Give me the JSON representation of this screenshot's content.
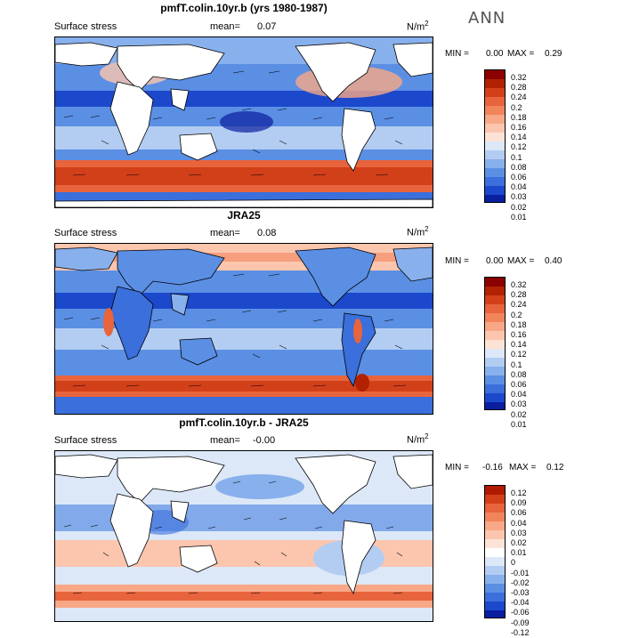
{
  "season": "ANN",
  "panels": [
    {
      "title": "pmfT.colin.10yr.b (yrs 1980-1987)",
      "field": "Surface stress",
      "mean_label": "mean=",
      "mean": "0.07",
      "unit_base": "N/m",
      "unit_exp": "2",
      "min_label": "MIN =",
      "min": "0.00",
      "max_label": "MAX =",
      "max": "0.29",
      "levels": [
        "0.32",
        "0.28",
        "0.24",
        "0.2",
        "0.18",
        "0.16",
        "0.14",
        "0.12",
        "0.1",
        "0.08",
        "0.06",
        "0.04",
        "0.03",
        "0.02",
        "0.01"
      ],
      "colors": [
        "#8b0000",
        "#b22200",
        "#d2401a",
        "#e8643c",
        "#f2845c",
        "#f8a886",
        "#fcc6ae",
        "#fde3d6",
        "#dce8f8",
        "#b3cdf2",
        "#88b0ec",
        "#5b8fe4",
        "#3a6fdc",
        "#1c48cc",
        "#0a1ea0"
      ]
    },
    {
      "title": "JRA25",
      "field": "Surface stress",
      "mean_label": "mean=",
      "mean": "0.08",
      "unit_base": "N/m",
      "unit_exp": "2",
      "min_label": "MIN =",
      "min": "0.00",
      "max_label": "MAX =",
      "max": "0.40",
      "levels": [
        "0.32",
        "0.28",
        "0.24",
        "0.2",
        "0.18",
        "0.16",
        "0.14",
        "0.12",
        "0.1",
        "0.08",
        "0.06",
        "0.04",
        "0.03",
        "0.02",
        "0.01"
      ],
      "colors": [
        "#8b0000",
        "#b22200",
        "#d2401a",
        "#e8643c",
        "#f2845c",
        "#f8a886",
        "#fcc6ae",
        "#fde3d6",
        "#dce8f8",
        "#b3cdf2",
        "#88b0ec",
        "#5b8fe4",
        "#3a6fdc",
        "#1c48cc",
        "#0a1ea0"
      ]
    },
    {
      "title": "pmfT.colin.10yr.b - JRA25",
      "field": "Surface stress",
      "mean_label": "mean=",
      "mean": "-0.00",
      "unit_base": "N/m",
      "unit_exp": "2",
      "min_label": "MIN =",
      "min": "-0.16",
      "max_label": "MAX =",
      "max": "0.12",
      "levels": [
        "0.12",
        "0.09",
        "0.06",
        "0.04",
        "0.03",
        "0.02",
        "0.01",
        "0",
        "-0.01",
        "-0.02",
        "-0.03",
        "-0.04",
        "-0.06",
        "-0.09",
        "-0.12"
      ],
      "colors": [
        "#b01a00",
        "#d2401a",
        "#e8643c",
        "#f2845c",
        "#f8a886",
        "#fcc6ae",
        "#fde3d6",
        "#ffffff",
        "#dce8f8",
        "#b3cdf2",
        "#88b0ec",
        "#5b8fe4",
        "#3a6fdc",
        "#1c48cc",
        "#0a1ea0"
      ]
    }
  ]
}
